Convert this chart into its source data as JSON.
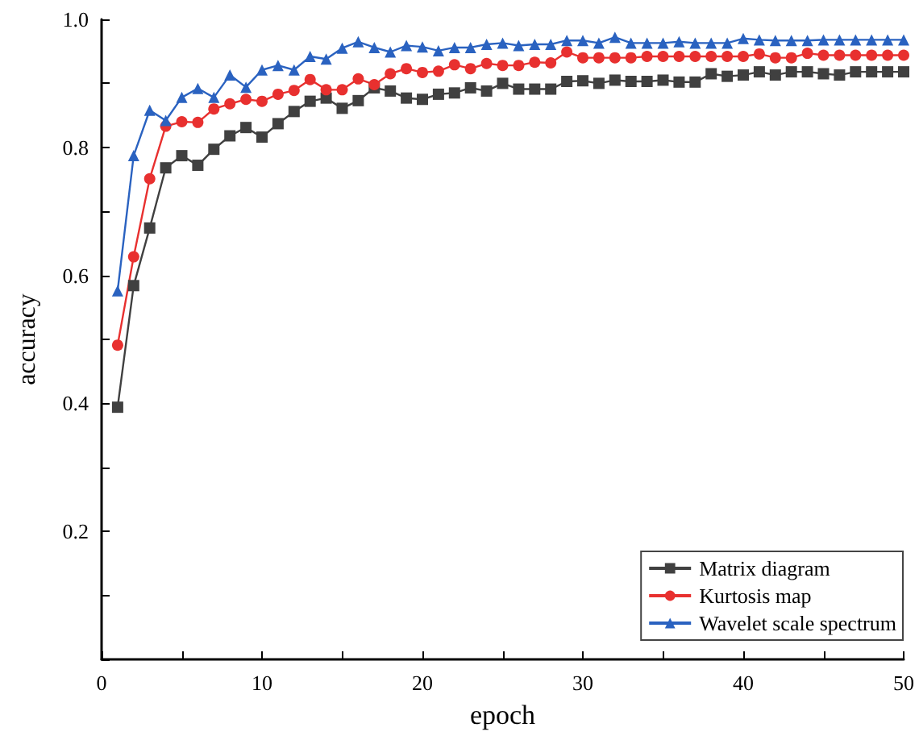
{
  "chart_data": {
    "type": "line",
    "xlabel": "epoch",
    "ylabel": "accuracy",
    "x": [
      1,
      2,
      3,
      4,
      5,
      6,
      7,
      8,
      9,
      10,
      11,
      12,
      13,
      14,
      15,
      16,
      17,
      18,
      19,
      20,
      21,
      22,
      23,
      24,
      25,
      26,
      27,
      28,
      29,
      30,
      31,
      32,
      33,
      34,
      35,
      36,
      37,
      38,
      39,
      40,
      41,
      42,
      43,
      44,
      45,
      46,
      47,
      48,
      49,
      50
    ],
    "series": [
      {
        "name": "Matrix diagram",
        "color": "#404040",
        "marker": "square",
        "values": [
          0.394,
          0.584,
          0.674,
          0.768,
          0.787,
          0.772,
          0.797,
          0.818,
          0.831,
          0.816,
          0.837,
          0.856,
          0.872,
          0.877,
          0.861,
          0.873,
          0.893,
          0.888,
          0.877,
          0.875,
          0.883,
          0.885,
          0.893,
          0.888,
          0.9,
          0.891,
          0.891,
          0.891,
          0.903,
          0.904,
          0.9,
          0.905,
          0.903,
          0.903,
          0.905,
          0.902,
          0.902,
          0.915,
          0.911,
          0.913,
          0.918,
          0.913,
          0.918,
          0.918,
          0.915,
          0.913,
          0.918,
          0.918,
          0.918,
          0.918
        ]
      },
      {
        "name": "Kurtosis map",
        "color": "#e8302f",
        "marker": "circle",
        "values": [
          0.491,
          0.629,
          0.751,
          0.833,
          0.84,
          0.839,
          0.86,
          0.868,
          0.875,
          0.872,
          0.883,
          0.889,
          0.906,
          0.89,
          0.89,
          0.907,
          0.898,
          0.915,
          0.923,
          0.917,
          0.919,
          0.929,
          0.923,
          0.931,
          0.928,
          0.928,
          0.933,
          0.932,
          0.949,
          0.94,
          0.94,
          0.94,
          0.94,
          0.942,
          0.942,
          0.942,
          0.942,
          0.942,
          0.942,
          0.942,
          0.946,
          0.94,
          0.94,
          0.947,
          0.944,
          0.944,
          0.944,
          0.944,
          0.944,
          0.944
        ]
      },
      {
        "name": "Wavelet scale spectrum",
        "color": "#2a62c0",
        "marker": "triangle",
        "values": [
          0.576,
          0.787,
          0.858,
          0.842,
          0.878,
          0.892,
          0.878,
          0.913,
          0.894,
          0.921,
          0.928,
          0.921,
          0.942,
          0.938,
          0.955,
          0.965,
          0.956,
          0.949,
          0.959,
          0.957,
          0.951,
          0.956,
          0.956,
          0.961,
          0.963,
          0.959,
          0.961,
          0.961,
          0.967,
          0.967,
          0.963,
          0.972,
          0.963,
          0.963,
          0.963,
          0.965,
          0.963,
          0.963,
          0.963,
          0.97,
          0.968,
          0.967,
          0.967,
          0.967,
          0.968,
          0.968,
          0.968,
          0.968,
          0.968,
          0.968
        ]
      }
    ],
    "xlim": [
      0,
      50
    ],
    "xticks": [
      0,
      {
        "value": 5,
        "label": null
      },
      10,
      {
        "value": 15,
        "label": null
      },
      20,
      {
        "value": 25,
        "label": null
      },
      30,
      {
        "value": 35,
        "label": null
      },
      40,
      {
        "value": 45,
        "label": null
      },
      50
    ],
    "ylim": [
      0,
      1.0
    ],
    "yticks": [
      {
        "value": 0,
        "label": null
      },
      {
        "value": 0.1,
        "label": null
      },
      0.2,
      {
        "value": 0.3,
        "label": null
      },
      0.4,
      {
        "value": 0.5,
        "label": null
      },
      0.6,
      {
        "value": 0.7,
        "label": null
      },
      0.8,
      {
        "value": 0.9,
        "label": null
      },
      {
        "value": 1.0,
        "label": "1.0"
      }
    ],
    "grid": false,
    "legend": "bottom right"
  }
}
